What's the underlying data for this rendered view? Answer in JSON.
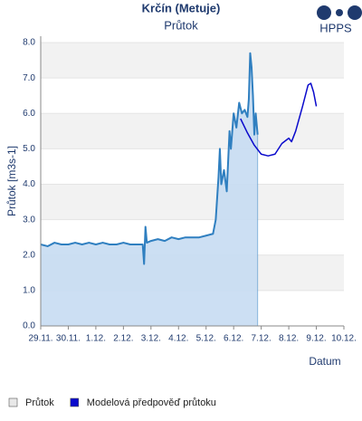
{
  "chart_data": {
    "type": "line",
    "title": "Krčín (Metuje)",
    "subtitle": "Průtok",
    "logo": "HPPS",
    "y_label": "Průtok [m3s-1]",
    "x_label": "Datum",
    "xlim": [
      0,
      11
    ],
    "xticks": [
      {
        "value": 0,
        "label": "29.11."
      },
      {
        "value": 1,
        "label": "30.11."
      },
      {
        "value": 2,
        "label": "1.12."
      },
      {
        "value": 3,
        "label": "2.12."
      },
      {
        "value": 4,
        "label": "3.12."
      },
      {
        "value": 5,
        "label": "4.12."
      },
      {
        "value": 6,
        "label": "5.12."
      },
      {
        "value": 7,
        "label": "6.12."
      },
      {
        "value": 8,
        "label": "7.12."
      },
      {
        "value": 9,
        "label": "8.12."
      },
      {
        "value": 10,
        "label": "9.12."
      },
      {
        "value": 11,
        "label": "10.12."
      }
    ],
    "ylim": [
      0,
      8
    ],
    "yticks": [
      {
        "value": 0,
        "label": "0.0"
      },
      {
        "value": 1,
        "label": "1.0"
      },
      {
        "value": 2,
        "label": "2.0"
      },
      {
        "value": 3,
        "label": "3.0"
      },
      {
        "value": 4,
        "label": "4.0"
      },
      {
        "value": 5,
        "label": "5.0"
      },
      {
        "value": 6,
        "label": "6.0"
      },
      {
        "value": 7,
        "label": "7.0"
      },
      {
        "value": 8,
        "label": "8.0"
      }
    ],
    "grid": true,
    "series": [
      {
        "name": "Průtok",
        "color": "#2f7fc0",
        "fill": "#c6dcf2",
        "legend_color": "#e8e8e8",
        "x": [
          0,
          0.25,
          0.5,
          0.75,
          1,
          1.25,
          1.5,
          1.75,
          2,
          2.25,
          2.5,
          2.75,
          3,
          3.25,
          3.5,
          3.7,
          3.75,
          3.8,
          3.85,
          4,
          4.25,
          4.5,
          4.75,
          5,
          5.25,
          5.5,
          5.75,
          6,
          6.25,
          6.35,
          6.45,
          6.5,
          6.55,
          6.65,
          6.75,
          6.85,
          6.9,
          7.0,
          7.1,
          7.2,
          7.3,
          7.4,
          7.5,
          7.55,
          7.6,
          7.65,
          7.7,
          7.75,
          7.8,
          7.87
        ],
        "values": [
          2.3,
          2.25,
          2.35,
          2.3,
          2.3,
          2.35,
          2.3,
          2.35,
          2.3,
          2.35,
          2.3,
          2.3,
          2.35,
          2.3,
          2.3,
          2.3,
          1.75,
          2.8,
          2.35,
          2.4,
          2.45,
          2.4,
          2.5,
          2.45,
          2.5,
          2.5,
          2.5,
          2.55,
          2.6,
          3.0,
          4.2,
          5.0,
          4.0,
          4.4,
          3.8,
          5.5,
          5.0,
          6.0,
          5.6,
          6.3,
          6.0,
          6.1,
          5.9,
          6.4,
          7.7,
          7.3,
          6.5,
          5.4,
          6.0,
          5.4
        ]
      },
      {
        "name": "Modelová předpověď průtoku",
        "color": "#0a0acc",
        "x": [
          7.25,
          7.5,
          7.75,
          8.0,
          8.25,
          8.5,
          8.75,
          9.0,
          9.1,
          9.25,
          9.5,
          9.7,
          9.8,
          9.9,
          10.0
        ],
        "values": [
          5.85,
          5.45,
          5.1,
          4.85,
          4.8,
          4.85,
          5.15,
          5.3,
          5.2,
          5.5,
          6.2,
          6.8,
          6.85,
          6.6,
          6.2
        ]
      }
    ]
  }
}
